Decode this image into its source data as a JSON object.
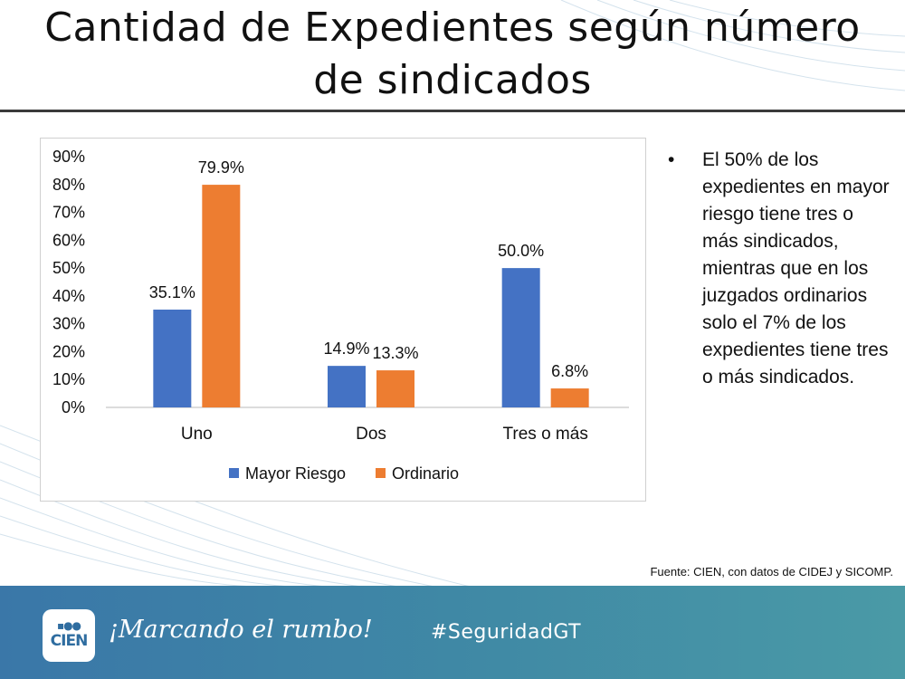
{
  "slide": {
    "title_line1": "Cantidad de Expedientes según número",
    "title_line2": "de sindicados",
    "bullet": "El 50% de los expedientes en mayor riesgo tiene tres o más sindicados, mientras que en los juzgados ordinarios solo el 7% de los expedientes tiene tres o más sindicados.",
    "source": "Fuente: CIEN, con datos de CIDEJ y SICOMP."
  },
  "footer": {
    "logo_text": "CIEN",
    "slogan": "¡Marcando el rumbo!",
    "hashtag": "#SeguridadGT"
  },
  "colors": {
    "mayor_riesgo": "#4472C4",
    "ordinario": "#ED7D31",
    "footer": "#3f88a5"
  },
  "chart_data": {
    "type": "bar",
    "title": "",
    "categories": [
      "Uno",
      "Dos",
      "Tres o más"
    ],
    "series": [
      {
        "name": "Mayor Riesgo",
        "values": [
          35.1,
          14.9,
          50.0
        ],
        "labels": [
          "35.1%",
          "14.9%",
          "50.0%"
        ]
      },
      {
        "name": "Ordinario",
        "values": [
          79.9,
          13.3,
          6.8
        ],
        "labels": [
          "79.9%",
          "13.3%",
          "6.8%"
        ]
      }
    ],
    "ylim": [
      0,
      90
    ],
    "yticks": [
      "0%",
      "10%",
      "20%",
      "30%",
      "40%",
      "50%",
      "60%",
      "70%",
      "80%",
      "90%"
    ],
    "xlabel": "",
    "ylabel": "",
    "grid": false,
    "legend": "bottom"
  }
}
